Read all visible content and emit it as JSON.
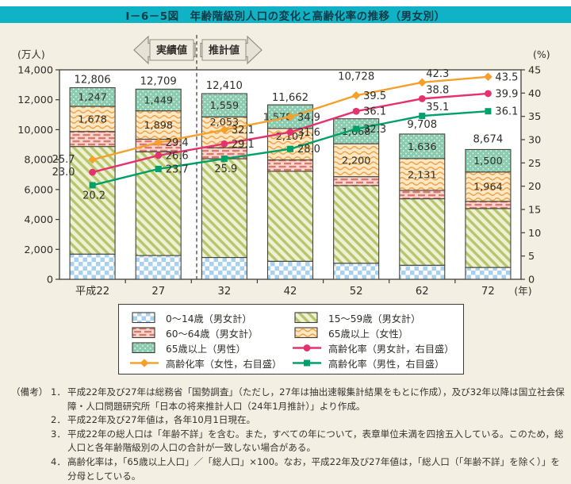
{
  "title": "Ⅰ－6－5図　年齢階級別人口の変化と高齢化率の推移（男女別）",
  "annotations": {
    "actual_label": "実績値",
    "projected_label": "推計値",
    "left_axis_unit": "(万人)",
    "right_axis_unit": "(%)",
    "year_unit": "(年)"
  },
  "chart_data": {
    "type": "stacked-bar+line",
    "categories": [
      "平成22",
      "27",
      "32",
      "42",
      "52",
      "62",
      "72"
    ],
    "totals": [
      12806,
      12709,
      12410,
      11662,
      10728,
      9708,
      8674
    ],
    "bar_series": [
      {
        "name": "0～14歳（男女計）",
        "pattern": "blue-check",
        "colors": {
          "bg": "#ffffff",
          "fg": "#a7d1ef"
        },
        "values": [
          1684,
          1589,
          1457,
          1204,
          1073,
          939,
          791
        ],
        "values_labeled_on_chart": false
      },
      {
        "name": "15～59歳（男女計）",
        "pattern": "green-diag",
        "colors": {
          "bg": "#eef1d3",
          "fg": "#b7c66d"
        },
        "values": [
          7192,
          6933,
          6601,
          6013,
          5187,
          4442,
          3939
        ],
        "values_labeled_on_chart": false
      },
      {
        "name": "60～64歳（男女計）",
        "pattern": "pink-brick",
        "colors": {
          "bg": "#f8d8d0",
          "fg": "#dc796d"
        },
        "values": [
          1005,
          840,
          740,
          760,
          600,
          560,
          480
        ],
        "values_labeled_on_chart": false
      },
      {
        "name": "65歳以上（女性）",
        "pattern": "orange-wave",
        "colors": {
          "bg": "#fce8c3",
          "fg": "#efa24d"
        },
        "values": [
          1678,
          1898,
          2053,
          2107,
          2200,
          2131,
          1964
        ],
        "values_labeled_on_chart": true
      },
      {
        "name": "65歳以上（男性）",
        "pattern": "teal-grid",
        "colors": {
          "bg": "#8bcbb0",
          "fg": "#ffffff"
        },
        "values": [
          1247,
          1449,
          1559,
          1578,
          1668,
          1636,
          1500
        ],
        "values_labeled_on_chart": true
      }
    ],
    "line_series": [
      {
        "name": "高齢化率（女性，右目盛）",
        "color": "#f4a02b",
        "marker": "diamond",
        "values": [
          25.7,
          29.4,
          32.1,
          34.9,
          39.5,
          42.3,
          43.5
        ],
        "label_pos": [
          "left",
          "right",
          "right",
          "right",
          "right",
          "above",
          "right"
        ]
      },
      {
        "name": "高齢化率（男女計，右目盛）",
        "color": "#e5316e",
        "marker": "circle",
        "values": [
          23.0,
          26.6,
          29.1,
          31.6,
          36.1,
          38.8,
          39.9
        ],
        "label_pos": [
          "left",
          "right",
          "right",
          "right",
          "right",
          "above",
          "right"
        ]
      },
      {
        "name": "高齢化率（男性，右目盛）",
        "color": "#00a06b",
        "marker": "square",
        "values": [
          20.2,
          23.7,
          25.9,
          28.0,
          32.3,
          35.1,
          36.1
        ],
        "label_pos": [
          "below",
          "right",
          "below",
          "right",
          "right",
          "above",
          "right"
        ]
      }
    ],
    "left_axis": {
      "unit": "万人",
      "ticks": [
        0,
        2000,
        4000,
        6000,
        8000,
        10000,
        12000,
        14000
      ],
      "max": 14000
    },
    "right_axis": {
      "unit": "%",
      "ticks": [
        0,
        5,
        10,
        15,
        20,
        25,
        30,
        35,
        40,
        45
      ],
      "max": 45
    },
    "legend_position": "bottom",
    "grid": "off"
  },
  "legend": {
    "items": [
      {
        "type": "swatch",
        "pattern": "blue-check",
        "label": "0～14歳（男女計）"
      },
      {
        "type": "swatch",
        "pattern": "green-diag",
        "label": "15～59歳（男女計）"
      },
      {
        "type": "swatch",
        "pattern": "pink-brick",
        "label": "60～64歳（男女計）"
      },
      {
        "type": "swatch",
        "pattern": "orange-wave",
        "label": "65歳以上（女性）"
      },
      {
        "type": "swatch",
        "pattern": "teal-grid",
        "label": "65歳以上（男性）"
      },
      {
        "type": "line",
        "series": 1,
        "label": "高齢化率（男女計，右目盛）"
      },
      {
        "type": "line",
        "series": 0,
        "label": "高齢化率（女性，右目盛）"
      },
      {
        "type": "line",
        "series": 2,
        "label": "高齢化率（男性，右目盛）"
      }
    ]
  },
  "notes": {
    "label": "（備考）",
    "items": [
      {
        "num": "1．",
        "text": "平成22年及び27年は総務省「国勢調査」（ただし，27年は抽出速報集計結果をもとに作成），及び32年以降は国立社会保障・人口問題研究所「日本の将来推計人口（24年1月推計）」より作成。"
      },
      {
        "num": "2．",
        "text": "平成22年及び27年値は，各年10月1日現在。"
      },
      {
        "num": "3．",
        "text": "平成22年の総人口は「年齢不詳」を含む。また，すべての年について，表章単位未満を四捨五入している。このため，総人口と各年齢階級別の人口の合計が一致しない場合がある。"
      },
      {
        "num": "4．",
        "text": "高齢化率は，「65歳以上人口」／「総人口」×100。なお，平成22年及び27年値は，「総人口（「年齢不詳」を除く）」を分母としている。"
      }
    ]
  }
}
